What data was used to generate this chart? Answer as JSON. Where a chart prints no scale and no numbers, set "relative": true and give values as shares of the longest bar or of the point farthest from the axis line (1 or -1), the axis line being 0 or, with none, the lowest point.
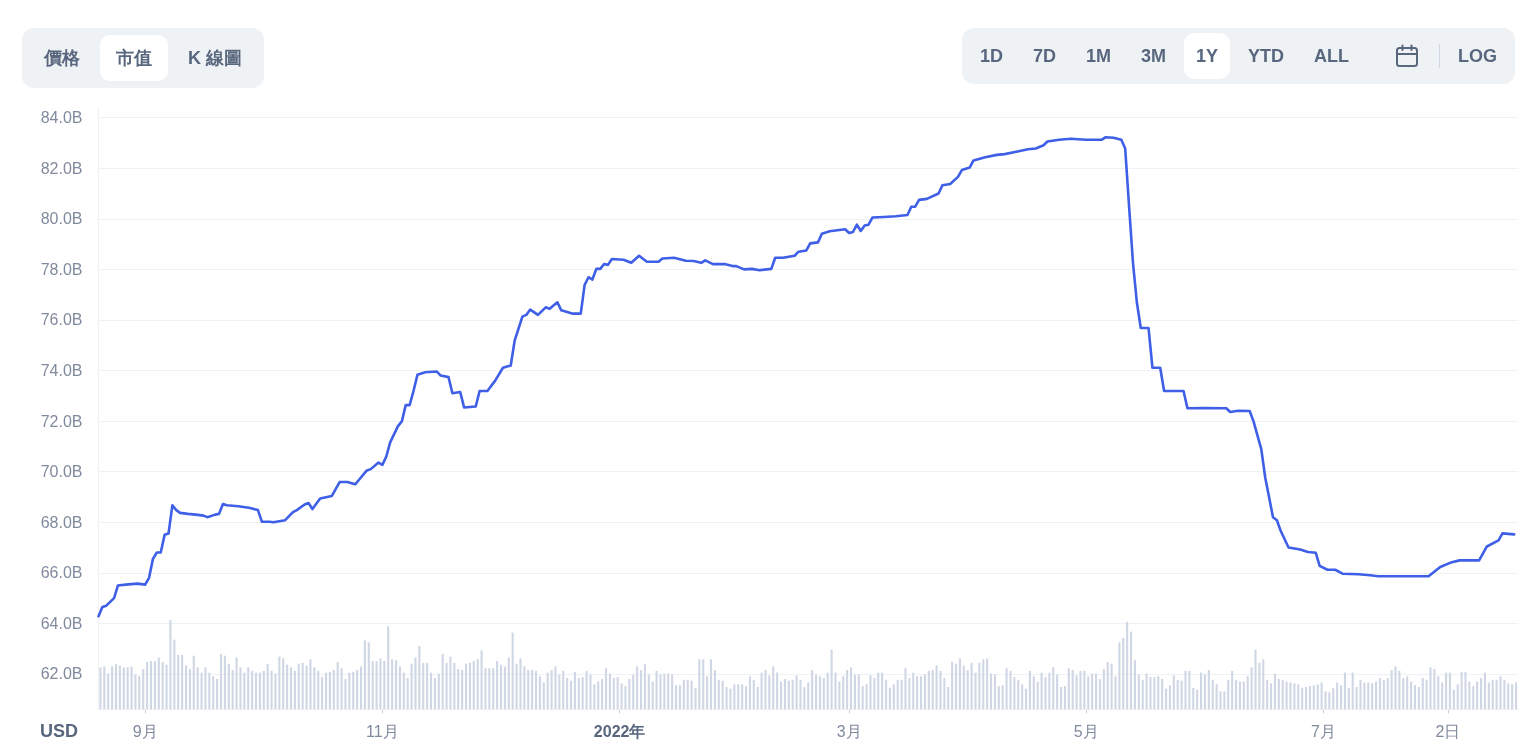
{
  "chart_data": [
    {
      "type": "line",
      "color": "#3e5fe6",
      "ylabel": "USD",
      "grid": "y",
      "annotations": [
        "價格",
        "市值",
        "K 線圖",
        "1D",
        "7D",
        "1M",
        "3M",
        "1Y",
        "YTD",
        "ALL",
        "LOG"
      ],
      "xlim": [
        "2021-08-20",
        "2022-08-20"
      ],
      "xticks": [
        {
          "value": "2021-09-01",
          "label": "9月"
        },
        {
          "value": "2021-11-01",
          "label": "11月"
        },
        {
          "value": "2022-01-01",
          "label": "2022年"
        },
        {
          "value": "2022-03-01",
          "label": "3月"
        },
        {
          "value": "2022-05-01",
          "label": "5月"
        },
        {
          "value": "2022-07-01",
          "label": "7月"
        },
        {
          "value": "2022-08-02",
          "label": "2日"
        }
      ],
      "ylim": [
        60.6,
        84.4
      ],
      "yticks": [
        {
          "value": 62,
          "label": "62.0B"
        },
        {
          "value": 64,
          "label": "64.0B"
        },
        {
          "value": 66,
          "label": "66.0B"
        },
        {
          "value": 68,
          "label": "68.0B"
        },
        {
          "value": 70,
          "label": "70.0B"
        },
        {
          "value": 72,
          "label": "72.0B"
        },
        {
          "value": 74,
          "label": "74.0B"
        },
        {
          "value": 76,
          "label": "76.0B"
        },
        {
          "value": 78,
          "label": "78.0B"
        },
        {
          "value": 80,
          "label": "80.0B"
        },
        {
          "value": 82,
          "label": "82.0B"
        },
        {
          "value": 84,
          "label": "84.0B"
        }
      ],
      "x": [
        "2021-08-20",
        "2021-08-21",
        "2021-08-22",
        "2021-08-24",
        "2021-08-25",
        "2021-08-27",
        "2021-08-30",
        "2021-09-01",
        "2021-09-02",
        "2021-09-03",
        "2021-09-04",
        "2021-09-05",
        "2021-09-06",
        "2021-09-07",
        "2021-09-08",
        "2021-09-09",
        "2021-09-10",
        "2021-09-12",
        "2021-09-14",
        "2021-09-16",
        "2021-09-17",
        "2021-09-19",
        "2021-09-20",
        "2021-09-21",
        "2021-09-22",
        "2021-09-25",
        "2021-09-28",
        "2021-09-30",
        "2021-10-01",
        "2021-10-03",
        "2021-10-04",
        "2021-10-07",
        "2021-10-09",
        "2021-10-10",
        "2021-10-12",
        "2021-10-13",
        "2021-10-14",
        "2021-10-16",
        "2021-10-19",
        "2021-10-21",
        "2021-10-23",
        "2021-10-25",
        "2021-10-26",
        "2021-10-28",
        "2021-10-29",
        "2021-10-31",
        "2021-11-01",
        "2021-11-02",
        "2021-11-03",
        "2021-11-05",
        "2021-11-06",
        "2021-11-07",
        "2021-11-08",
        "2021-11-09",
        "2021-11-10",
        "2021-11-12",
        "2021-11-15",
        "2021-11-16",
        "2021-11-18",
        "2021-11-19",
        "2021-11-21",
        "2021-11-22",
        "2021-11-25",
        "2021-11-26",
        "2021-11-28",
        "2021-11-30",
        "2021-12-02",
        "2021-12-04",
        "2021-12-05",
        "2021-12-07",
        "2021-12-08",
        "2021-12-09",
        "2021-12-11",
        "2021-12-13",
        "2021-12-14",
        "2021-12-16",
        "2021-12-17",
        "2021-12-20",
        "2021-12-22",
        "2021-12-23",
        "2021-12-24",
        "2021-12-25",
        "2021-12-26",
        "2021-12-27",
        "2021-12-28",
        "2021-12-29",
        "2021-12-30",
        "2022-01-02",
        "2022-01-04",
        "2022-01-06",
        "2022-01-08",
        "2022-01-11",
        "2022-01-12",
        "2022-01-15",
        "2022-01-18",
        "2022-01-20",
        "2022-01-22",
        "2022-01-23",
        "2022-01-25",
        "2022-01-28",
        "2022-01-30",
        "2022-01-31",
        "2022-02-02",
        "2022-02-04",
        "2022-02-06",
        "2022-02-09",
        "2022-02-10",
        "2022-02-12",
        "2022-02-15",
        "2022-02-16",
        "2022-02-18",
        "2022-02-19",
        "2022-02-21",
        "2022-02-22",
        "2022-02-24",
        "2022-02-28",
        "2022-03-01",
        "2022-03-02",
        "2022-03-03",
        "2022-03-04",
        "2022-03-05",
        "2022-03-06",
        "2022-03-07",
        "2022-03-10",
        "2022-03-13",
        "2022-03-16",
        "2022-03-17",
        "2022-03-18",
        "2022-03-19",
        "2022-03-21",
        "2022-03-24",
        "2022-03-25",
        "2022-03-27",
        "2022-03-29",
        "2022-03-30",
        "2022-04-01",
        "2022-04-02",
        "2022-04-05",
        "2022-04-08",
        "2022-04-10",
        "2022-04-13",
        "2022-04-16",
        "2022-04-18",
        "2022-04-20",
        "2022-04-21",
        "2022-04-24",
        "2022-04-27",
        "2022-05-01",
        "2022-05-05",
        "2022-05-06",
        "2022-05-08",
        "2022-05-10",
        "2022-05-11",
        "2022-05-12",
        "2022-05-13",
        "2022-05-14",
        "2022-05-15",
        "2022-05-17",
        "2022-05-18",
        "2022-05-20",
        "2022-05-21",
        "2022-05-26",
        "2022-05-27",
        "2022-05-31",
        "2022-06-06",
        "2022-06-07",
        "2022-06-09",
        "2022-06-12",
        "2022-06-13",
        "2022-06-15",
        "2022-06-16",
        "2022-06-18",
        "2022-06-19",
        "2022-06-20",
        "2022-06-22",
        "2022-06-25",
        "2022-06-27",
        "2022-06-29",
        "2022-06-30",
        "2022-07-02",
        "2022-07-04",
        "2022-07-06",
        "2022-07-10",
        "2022-07-13",
        "2022-07-15",
        "2022-07-21",
        "2022-07-28",
        "2022-07-31",
        "2022-08-03",
        "2022-08-05",
        "2022-08-10",
        "2022-08-12",
        "2022-08-15",
        "2022-08-16",
        "2022-08-19"
      ],
      "values": [
        64.28,
        64.65,
        64.7,
        65.0,
        65.5,
        65.53,
        65.57,
        65.53,
        65.8,
        66.55,
        66.8,
        66.8,
        67.5,
        67.55,
        68.67,
        68.48,
        68.37,
        68.33,
        68.3,
        68.26,
        68.2,
        68.3,
        68.33,
        68.72,
        68.67,
        68.63,
        68.56,
        68.48,
        68.02,
        68.02,
        68.0,
        68.08,
        68.4,
        68.48,
        68.7,
        68.76,
        68.52,
        68.94,
        69.04,
        69.59,
        69.59,
        69.5,
        69.68,
        70.05,
        70.1,
        70.36,
        70.27,
        70.6,
        71.16,
        71.8,
        71.99,
        72.63,
        72.63,
        73.19,
        73.83,
        73.93,
        73.96,
        73.8,
        73.74,
        73.1,
        73.15,
        72.54,
        72.58,
        73.19,
        73.19,
        73.6,
        74.11,
        74.2,
        75.18,
        76.13,
        76.2,
        76.41,
        76.2,
        76.5,
        76.44,
        76.7,
        76.38,
        76.25,
        76.25,
        77.39,
        77.69,
        77.6,
        78.02,
        78.02,
        78.21,
        78.18,
        78.41,
        78.38,
        78.26,
        78.54,
        78.3,
        78.3,
        78.43,
        78.46,
        78.34,
        78.33,
        78.26,
        78.36,
        78.21,
        78.21,
        78.13,
        78.13,
        78.0,
        78.02,
        77.97,
        78.02,
        78.46,
        78.46,
        78.54,
        78.7,
        78.75,
        79.03,
        79.07,
        79.41,
        79.51,
        79.59,
        79.44,
        79.48,
        79.77,
        79.52,
        79.74,
        79.77,
        80.05,
        80.07,
        80.1,
        80.15,
        80.48,
        80.48,
        80.75,
        80.79,
        81.0,
        81.33,
        81.38,
        81.66,
        81.93,
        82.03,
        82.31,
        82.44,
        82.53,
        82.56,
        82.65,
        82.75,
        82.78,
        82.91,
        83.06,
        83.13,
        83.17,
        83.13,
        83.13,
        83.23,
        83.21,
        83.13,
        82.78,
        80.48,
        78.26,
        76.69,
        75.68,
        75.68,
        74.11,
        74.11,
        73.19,
        73.19,
        72.51,
        72.52,
        72.51,
        72.36,
        72.41,
        72.4,
        71.99,
        70.88,
        69.77,
        68.2,
        68.08,
        67.65,
        67.0,
        66.92,
        66.82,
        66.79,
        66.27,
        66.12,
        66.12,
        65.96,
        65.94,
        65.9,
        65.86,
        65.86,
        65.86,
        66.23,
        66.42,
        66.49,
        66.49,
        67.04,
        67.28,
        67.56,
        67.52
      ]
    },
    {
      "type": "bar",
      "relative": true,
      "color": "#cfd6e4",
      "categories": [
        null,
        null,
        null,
        null,
        null,
        null,
        null,
        null,
        null,
        null,
        null,
        null,
        null,
        null,
        null,
        null,
        null,
        null,
        null,
        null,
        null,
        null,
        null,
        null,
        null,
        null,
        null,
        null,
        null,
        null,
        null,
        null,
        null,
        null,
        null,
        null,
        null,
        null,
        null,
        null,
        null,
        null,
        null,
        null,
        null,
        null,
        null,
        null,
        null,
        null,
        null,
        null,
        null,
        null,
        null,
        null,
        null,
        null,
        null,
        null,
        null,
        null,
        null,
        null,
        null,
        null,
        null,
        null,
        null,
        null,
        null,
        null,
        null,
        null,
        null,
        null,
        null,
        null,
        null,
        null,
        null,
        null,
        null,
        null,
        null,
        null,
        null,
        null,
        null,
        null,
        null,
        null,
        null,
        null,
        null,
        null,
        null,
        null,
        null,
        null,
        null,
        null,
        null,
        null,
        null,
        null,
        null,
        null,
        null,
        null,
        null,
        null,
        null,
        null,
        null,
        null,
        null,
        null,
        null,
        null,
        null,
        null,
        null,
        null,
        null,
        null,
        null,
        null,
        null,
        null,
        null,
        null,
        null,
        null,
        null,
        null,
        null,
        null,
        null,
        null,
        null,
        null,
        null,
        null,
        null,
        null,
        null,
        null,
        null,
        null,
        null,
        null,
        null,
        null,
        null,
        null,
        null,
        null,
        null,
        null,
        null,
        null,
        null,
        null,
        null,
        null,
        null,
        null,
        null,
        null,
        null,
        null,
        null,
        null,
        null,
        null,
        null,
        null,
        null,
        null,
        null,
        null,
        null,
        null,
        null,
        null,
        null,
        null,
        null,
        null,
        null,
        null,
        null,
        null,
        null,
        null,
        null,
        null,
        null,
        null,
        null,
        null,
        null,
        null,
        null,
        null,
        null,
        null,
        null,
        null,
        null,
        null,
        null,
        null,
        null,
        null,
        null,
        null,
        null,
        null,
        null,
        null,
        null,
        null,
        null,
        null,
        null,
        null,
        null,
        null,
        null,
        null,
        null,
        null,
        null,
        null,
        null,
        null,
        null,
        null,
        null,
        null,
        null,
        null,
        null,
        null,
        null,
        null,
        null,
        null,
        null,
        null,
        null,
        null,
        null,
        null,
        null,
        null,
        null,
        null,
        null,
        null,
        null,
        null,
        null,
        null,
        null,
        null,
        null,
        null,
        null,
        null,
        null,
        null,
        null,
        null,
        null,
        null,
        null,
        null,
        null,
        null,
        null,
        null,
        null,
        null,
        null,
        null,
        null,
        null,
        null,
        null,
        null,
        null,
        null,
        null,
        null,
        null,
        null,
        null,
        null,
        null,
        null,
        null,
        null,
        null,
        null,
        null,
        null,
        null,
        null,
        null,
        null,
        null,
        null,
        null,
        null,
        null,
        null,
        null,
        null,
        null,
        null,
        null,
        null,
        null,
        null,
        null,
        null,
        null,
        null,
        null,
        null,
        null,
        null,
        null,
        null,
        null,
        null,
        null,
        null,
        null,
        null,
        null,
        null,
        null,
        null,
        null,
        null,
        null,
        null,
        null,
        null,
        null,
        null,
        null,
        null,
        null,
        null,
        null,
        null,
        null,
        null,
        null,
        null
      ],
      "values": [
        0.47,
        0.48,
        0.4,
        0.48,
        0.51,
        0.49,
        0.47,
        0.47,
        0.48,
        0.39,
        0.37,
        0.45,
        0.53,
        0.54,
        0.54,
        0.58,
        0.53,
        0.5,
        1,
        0.78,
        0.61,
        0.61,
        0.49,
        0.45,
        0.6,
        0.47,
        0.41,
        0.47,
        0.41,
        0.37,
        0.34,
        0.62,
        0.6,
        0.51,
        0.44,
        0.58,
        0.47,
        0.41,
        0.47,
        0.43,
        0.41,
        0.41,
        0.43,
        0.51,
        0.43,
        0.4,
        0.59,
        0.57,
        0.5,
        0.47,
        0.43,
        0.51,
        0.52,
        0.49,
        0.56,
        0.47,
        0.43,
        0.36,
        0.41,
        0.42,
        0.44,
        0.53,
        0.46,
        0.34,
        0.41,
        0.42,
        0.44,
        0.48,
        0.77,
        0.75,
        0.54,
        0.54,
        0.57,
        0.54,
        0.93,
        0.56,
        0.55,
        0.48,
        0.41,
        0.35,
        0.51,
        0.58,
        0.71,
        0.52,
        0.52,
        0.41,
        0.35,
        0.4,
        0.62,
        0.52,
        0.59,
        0.52,
        0.45,
        0.44,
        0.51,
        0.52,
        0.54,
        0.56,
        0.66,
        0.46,
        0.46,
        0.46,
        0.54,
        0.5,
        0.48,
        0.58,
        0.86,
        0.51,
        0.57,
        0.48,
        0.44,
        0.44,
        0.43,
        0.37,
        0.3,
        0.41,
        0.44,
        0.48,
        0.39,
        0.43,
        0.35,
        0.32,
        0.42,
        0.35,
        0.36,
        0.43,
        0.39,
        0.28,
        0.31,
        0.34,
        0.46,
        0.4,
        0.35,
        0.36,
        0.29,
        0.26,
        0.34,
        0.39,
        0.48,
        0.44,
        0.51,
        0.39,
        0.31,
        0.43,
        0.39,
        0.4,
        0.4,
        0.39,
        0.27,
        0.27,
        0.33,
        0.33,
        0.32,
        0.24,
        0.56,
        0.56,
        0.37,
        0.56,
        0.44,
        0.33,
        0.32,
        0.25,
        0.23,
        0.28,
        0.28,
        0.28,
        0.26,
        0.37,
        0.33,
        0.25,
        0.41,
        0.44,
        0.38,
        0.48,
        0.41,
        0.31,
        0.34,
        0.32,
        0.33,
        0.38,
        0.33,
        0.25,
        0.3,
        0.44,
        0.39,
        0.37,
        0.35,
        0.41,
        0.67,
        0.41,
        0.31,
        0.37,
        0.44,
        0.47,
        0.39,
        0.39,
        0.26,
        0.28,
        0.38,
        0.35,
        0.41,
        0.41,
        0.33,
        0.24,
        0.28,
        0.33,
        0.33,
        0.46,
        0.35,
        0.41,
        0.37,
        0.37,
        0.39,
        0.43,
        0.44,
        0.49,
        0.43,
        0.35,
        0.25,
        0.53,
        0.51,
        0.57,
        0.49,
        0.44,
        0.52,
        0.41,
        0.52,
        0.56,
        0.57,
        0.4,
        0.39,
        0.26,
        0.27,
        0.46,
        0.43,
        0.36,
        0.33,
        0.28,
        0.23,
        0.43,
        0.37,
        0.31,
        0.41,
        0.36,
        0.41,
        0.47,
        0.39,
        0.25,
        0.26,
        0.46,
        0.44,
        0.38,
        0.43,
        0.43,
        0.37,
        0.4,
        0.4,
        0.34,
        0.45,
        0.53,
        0.51,
        0.37,
        0.75,
        0.8,
        0.98,
        0.87,
        0.55,
        0.39,
        0.33,
        0.4,
        0.36,
        0.36,
        0.37,
        0.34,
        0.23,
        0.27,
        0.38,
        0.33,
        0.32,
        0.43,
        0.43,
        0.24,
        0.22,
        0.41,
        0.39,
        0.44,
        0.33,
        0.28,
        0.2,
        0.2,
        0.33,
        0.43,
        0.33,
        0.31,
        0.31,
        0.37,
        0.47,
        0.67,
        0.52,
        0.56,
        0.33,
        0.29,
        0.4,
        0.34,
        0.33,
        0.31,
        0.3,
        0.29,
        0.28,
        0.24,
        0.25,
        0.26,
        0.27,
        0.28,
        0.3,
        0.2,
        0.19,
        0.24,
        0.3,
        0.27,
        0.41,
        0.24,
        0.41,
        0.25,
        0.33,
        0.3,
        0.3,
        0.29,
        0.31,
        0.35,
        0.33,
        0.35,
        0.44,
        0.48,
        0.43,
        0.35,
        0.37,
        0.31,
        0.27,
        0.25,
        0.35,
        0.33,
        0.47,
        0.45,
        0.37,
        0.3,
        0.41,
        0.41,
        0.22,
        0.28,
        0.42,
        0.42,
        0.31,
        0.26,
        0.31,
        0.35,
        0.41,
        0.3,
        0.33,
        0.33,
        0.37,
        0.33,
        0.29,
        0.28,
        0.3
      ]
    }
  ]
}
